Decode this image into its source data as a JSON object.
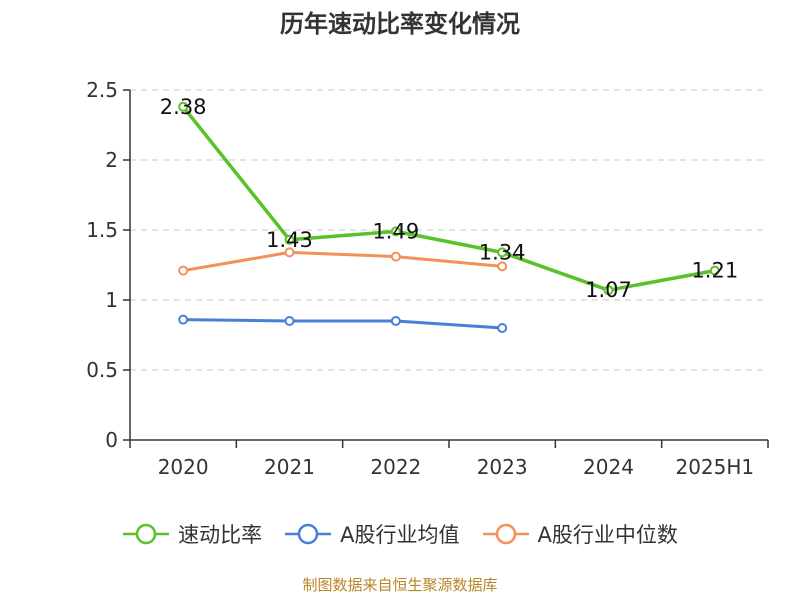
{
  "chart_data": {
    "type": "line",
    "title": "历年速动比率变化情况",
    "categories": [
      "2020",
      "2021",
      "2022",
      "2023",
      "2024",
      "2025H1"
    ],
    "ylim": [
      0,
      2.5
    ],
    "yticks": [
      "0",
      "0.5",
      "1",
      "1.5",
      "2",
      "2.5"
    ],
    "grid": true,
    "legend_position": "bottom",
    "series": [
      {
        "name": "速动比率",
        "color": "#5bc12a",
        "values": [
          2.38,
          1.43,
          1.49,
          1.34,
          1.07,
          1.21
        ],
        "labels": [
          "2.38",
          "1.43",
          "1.49",
          "1.34",
          "1.07",
          "1.21"
        ]
      },
      {
        "name": "A股行业均值",
        "color": "#4a7fd8",
        "values": [
          0.86,
          0.85,
          0.85,
          0.8,
          null,
          null
        ]
      },
      {
        "name": "A股行业中位数",
        "color": "#f4905a",
        "values": [
          1.21,
          1.34,
          1.31,
          1.24,
          null,
          null
        ]
      }
    ]
  },
  "source_note": "制图数据来自恒生聚源数据库"
}
